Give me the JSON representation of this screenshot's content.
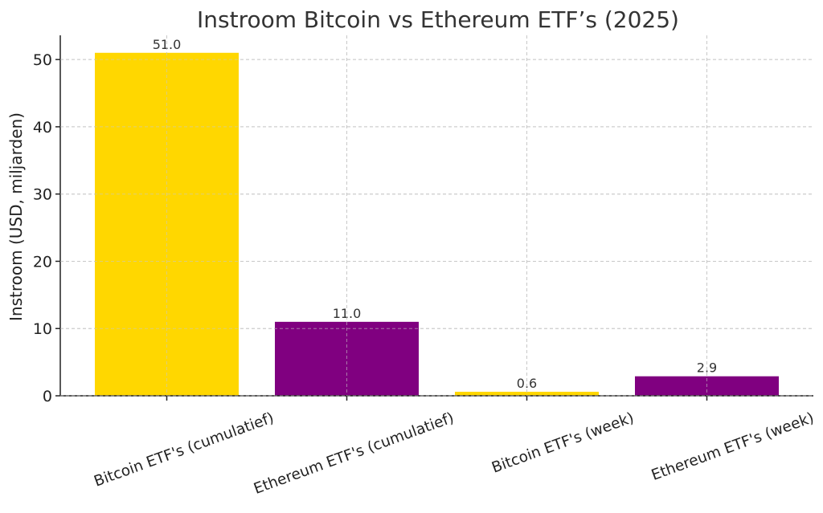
{
  "chart_data": {
    "type": "bar",
    "title": "Instroom Bitcoin vs Ethereum ETF’s (2025)",
    "xlabel": "",
    "ylabel": "Instroom (USD, miljarden)",
    "categories": [
      "Bitcoin ETF's (cumulatief)",
      "Ethereum ETF's (cumulatief)",
      "Bitcoin ETF's (week)",
      "Ethereum ETF's (week)"
    ],
    "values": [
      51.0,
      11.0,
      0.6,
      2.9
    ],
    "value_labels": [
      "51.0",
      "11.0",
      "0.6",
      "2.9"
    ],
    "bar_colors": [
      "#FFD700",
      "#800080",
      "#FFD700",
      "#800080"
    ],
    "ylim": [
      0,
      53.6
    ],
    "yticks": [
      0,
      10,
      20,
      30,
      40,
      50
    ],
    "grid": true,
    "legend": "none",
    "x_tick_rotation": "-20"
  }
}
